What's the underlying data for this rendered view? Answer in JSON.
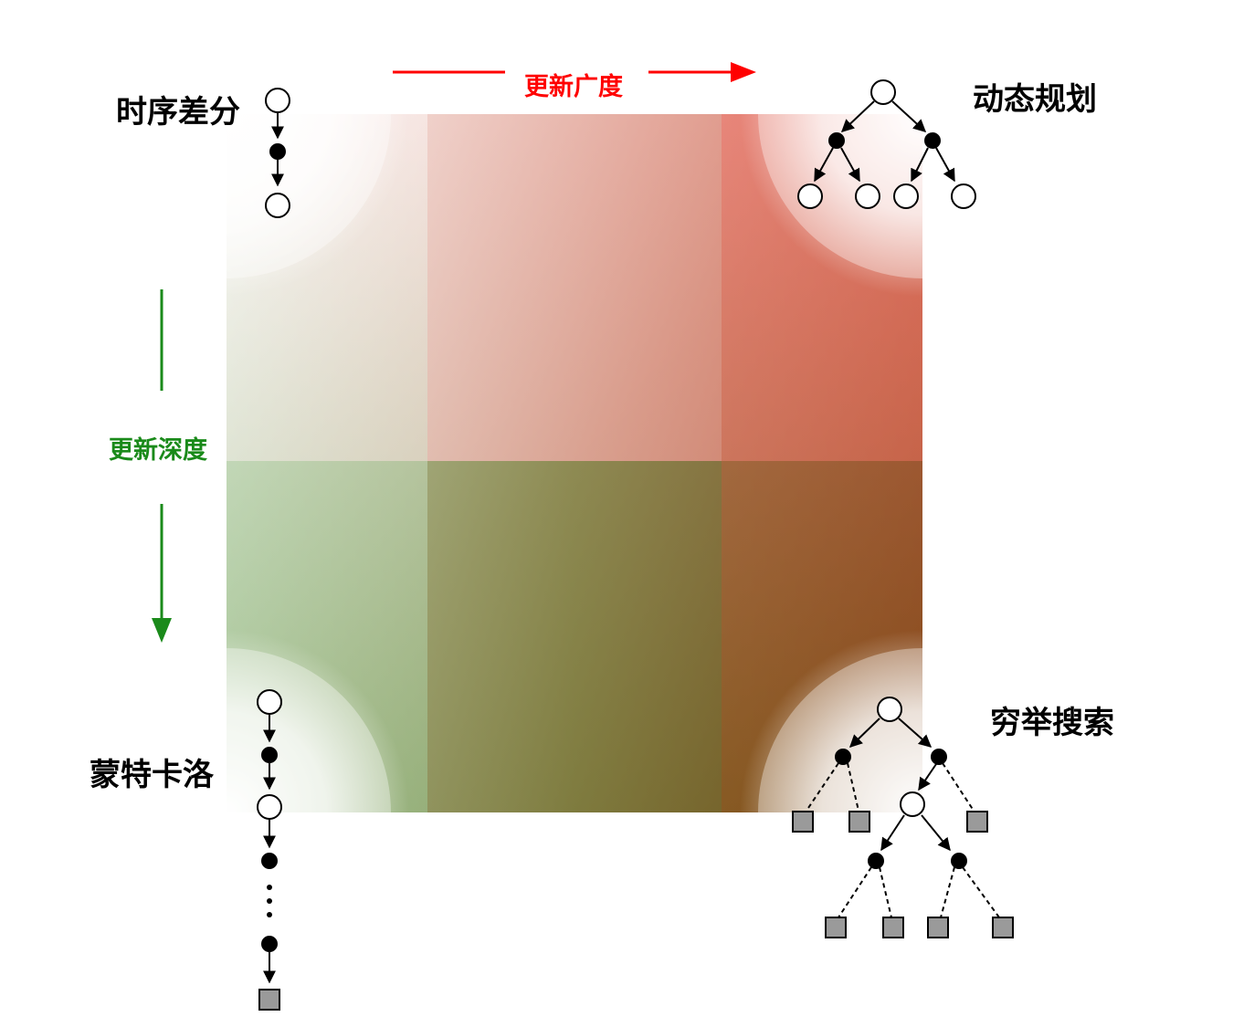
{
  "axes": {
    "breadth": {
      "label": "更新广度",
      "color": "#ff0000"
    },
    "depth": {
      "label": "更新深度",
      "color": "#1a8a1a"
    }
  },
  "corners": {
    "top_left": {
      "label": "时序差分"
    },
    "top_right": {
      "label": "动态规划"
    },
    "bottom_left": {
      "label": "蒙特卡洛"
    },
    "bottom_right": {
      "label": "穷举搜索"
    }
  },
  "gradient_colors": {
    "top_left": "#ffffff",
    "top_right": "#f56a6a",
    "bottom_left": "#a2d6a2",
    "bottom_right": "#7a4a14",
    "center": "#b08a68"
  },
  "node_colors": {
    "state_node_fill": "#ffffff",
    "action_node_fill": "#000000",
    "terminal_node_fill": "#9a9a9a"
  }
}
